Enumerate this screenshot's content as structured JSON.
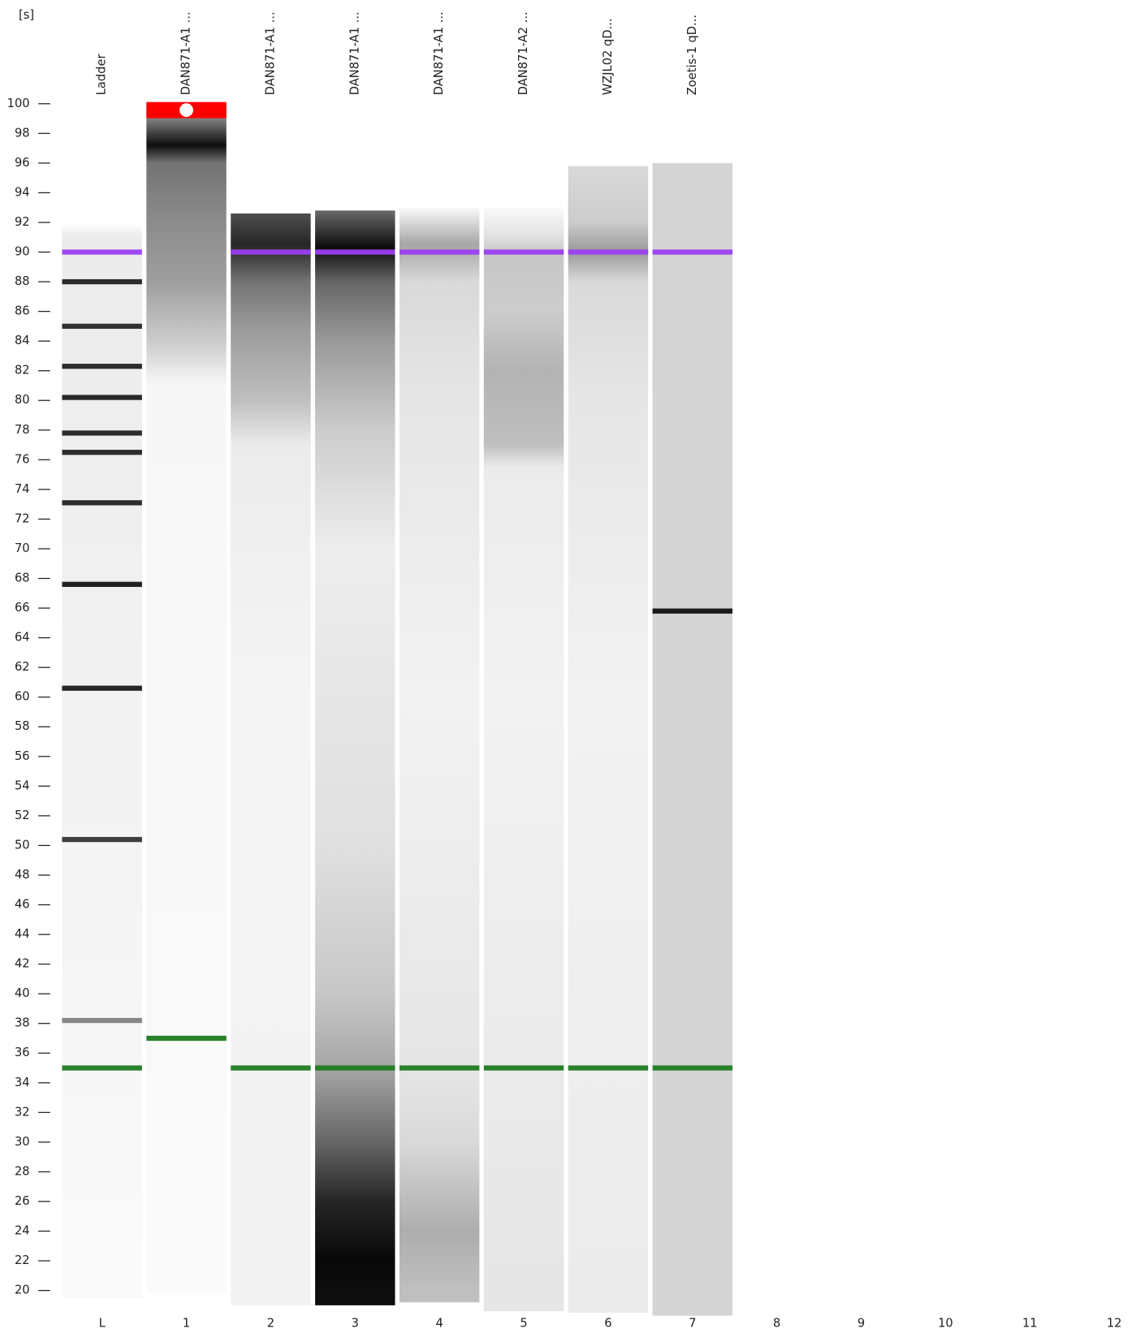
{
  "chart_data": {
    "type": "gel",
    "y_unit": "[s]",
    "ylim": [
      20,
      100
    ],
    "yticks": [
      20,
      22,
      24,
      26,
      28,
      30,
      32,
      34,
      36,
      38,
      40,
      42,
      44,
      46,
      48,
      50,
      52,
      54,
      56,
      58,
      60,
      62,
      64,
      66,
      68,
      70,
      72,
      74,
      76,
      78,
      80,
      82,
      84,
      86,
      88,
      90,
      92,
      94,
      96,
      98,
      100
    ],
    "lanes": [
      {
        "label": "L",
        "name": "Ladder",
        "range": [
          19.5,
          92
        ],
        "background": "#fdfdfd",
        "smear": [
          {
            "at": 92,
            "level": 0
          },
          {
            "at": 91,
            "level": 0.08
          },
          {
            "at": 20,
            "level": 0.02
          }
        ],
        "bands": [
          {
            "at": 90,
            "color": "#9b3ef0"
          },
          {
            "at": 88,
            "color": "#222222"
          },
          {
            "at": 85,
            "color": "#262626"
          },
          {
            "at": 82.3,
            "color": "#222222"
          },
          {
            "at": 80.2,
            "color": "#1e1e1e"
          },
          {
            "at": 77.8,
            "color": "#222222"
          },
          {
            "at": 76.5,
            "color": "#222222"
          },
          {
            "at": 73.1,
            "color": "#222222"
          },
          {
            "at": 67.6,
            "color": "#151515"
          },
          {
            "at": 60.6,
            "color": "#1a1a1a"
          },
          {
            "at": 50.4,
            "color": "#333333"
          },
          {
            "at": 38.2,
            "color": "#808080"
          },
          {
            "at": 35,
            "color": "#1e7a1e"
          }
        ]
      },
      {
        "label": "1",
        "name": "DAN871-A1 ...",
        "range": [
          19.9,
          100
        ],
        "background": "#fdfdfd",
        "flag_color": "#ff0000",
        "smear": [
          {
            "at": 99,
            "level": 0.5
          },
          {
            "at": 97.2,
            "level": 0.95
          },
          {
            "at": 96,
            "level": 0.55
          },
          {
            "at": 92,
            "level": 0.45
          },
          {
            "at": 88,
            "level": 0.38
          },
          {
            "at": 84,
            "level": 0.2
          },
          {
            "at": 81,
            "level": 0.03
          },
          {
            "at": 20,
            "level": 0.02
          }
        ],
        "bands": [
          {
            "at": 37,
            "color": "#1e7a1e"
          }
        ]
      },
      {
        "label": "2",
        "name": "DAN871-A1 ...",
        "range": [
          19,
          92.6
        ],
        "background": "#fdfdfd",
        "smear": [
          {
            "at": 92.5,
            "level": 0.7
          },
          {
            "at": 90.5,
            "level": 0.85
          },
          {
            "at": 88,
            "level": 0.55
          },
          {
            "at": 85,
            "level": 0.4
          },
          {
            "at": 80,
            "level": 0.25
          },
          {
            "at": 77,
            "level": 0.08
          },
          {
            "at": 60,
            "level": 0.04
          },
          {
            "at": 20,
            "level": 0.05
          }
        ],
        "bands": [
          {
            "at": 90,
            "color": "#9b3ef0"
          },
          {
            "at": 35,
            "color": "#1e7a1e"
          }
        ]
      },
      {
        "label": "3",
        "name": "DAN871-A1 ...",
        "range": [
          19,
          92.8
        ],
        "background": "#fdfdfd",
        "smear": [
          {
            "at": 92.7,
            "level": 0.6
          },
          {
            "at": 90.3,
            "level": 0.95
          },
          {
            "at": 88,
            "level": 0.6
          },
          {
            "at": 84,
            "level": 0.4
          },
          {
            "at": 78,
            "level": 0.2
          },
          {
            "at": 70,
            "level": 0.07
          },
          {
            "at": 50,
            "level": 0.12
          },
          {
            "at": 40,
            "level": 0.22
          },
          {
            "at": 35,
            "level": 0.35
          },
          {
            "at": 30,
            "level": 0.6
          },
          {
            "at": 26,
            "level": 0.85
          },
          {
            "at": 22,
            "level": 0.97
          },
          {
            "at": 20,
            "level": 0.95
          }
        ],
        "bands": [
          {
            "at": 90,
            "color": "#9b3ef0"
          },
          {
            "at": 35,
            "color": "#1e7a1e"
          }
        ]
      },
      {
        "label": "4",
        "name": "DAN871-A1 ...",
        "range": [
          19.2,
          93
        ],
        "background": "#fdfdfd",
        "smear": [
          {
            "at": 93,
            "level": 0.02
          },
          {
            "at": 90.5,
            "level": 0.35
          },
          {
            "at": 88,
            "level": 0.15
          },
          {
            "at": 80,
            "level": 0.1
          },
          {
            "at": 60,
            "level": 0.05
          },
          {
            "at": 35,
            "level": 0.1
          },
          {
            "at": 30,
            "level": 0.15
          },
          {
            "at": 24,
            "level": 0.32
          },
          {
            "at": 20,
            "level": 0.25
          }
        ],
        "bands": [
          {
            "at": 90,
            "color": "#9b3ef0"
          },
          {
            "at": 35,
            "color": "#1e7a1e"
          }
        ]
      },
      {
        "label": "5",
        "name": "DAN871-A2 ...",
        "range": [
          18.6,
          93
        ],
        "background": "#fdfdfd",
        "smear": [
          {
            "at": 93,
            "level": 0.02
          },
          {
            "at": 91,
            "level": 0.12
          },
          {
            "at": 90,
            "level": 0.22
          },
          {
            "at": 86,
            "level": 0.2
          },
          {
            "at": 82,
            "level": 0.3
          },
          {
            "at": 77,
            "level": 0.25
          },
          {
            "at": 75.5,
            "level": 0.08
          },
          {
            "at": 60,
            "level": 0.05
          },
          {
            "at": 20,
            "level": 0.1
          }
        ],
        "bands": [
          {
            "at": 90,
            "color": "#9b3ef0"
          },
          {
            "at": 35,
            "color": "#1e7a1e"
          }
        ]
      },
      {
        "label": "6",
        "name": "WZJL02 qD...",
        "range": [
          18.5,
          95.8
        ],
        "background": "#fdfdfd",
        "smear": [
          {
            "at": 95.8,
            "level": 0.15
          },
          {
            "at": 92,
            "level": 0.2
          },
          {
            "at": 90,
            "level": 0.4
          },
          {
            "at": 88,
            "level": 0.15
          },
          {
            "at": 80,
            "level": 0.1
          },
          {
            "at": 60,
            "level": 0.05
          },
          {
            "at": 20,
            "level": 0.08
          }
        ],
        "bands": [
          {
            "at": 90,
            "color": "#9b3ef0"
          },
          {
            "at": 35,
            "color": "#1e7a1e"
          }
        ]
      },
      {
        "label": "7",
        "name": "Zoetis-1 qD...",
        "range": [
          18.3,
          96
        ],
        "background": "#d4d4d4",
        "bands": [
          {
            "at": 90,
            "color": "#9b3ef0"
          },
          {
            "at": 65.8,
            "color": "#111111"
          },
          {
            "at": 35,
            "color": "#1e7a1e"
          }
        ]
      },
      {
        "label": "8"
      },
      {
        "label": "9"
      },
      {
        "label": "10"
      },
      {
        "label": "11"
      },
      {
        "label": "12"
      }
    ]
  }
}
